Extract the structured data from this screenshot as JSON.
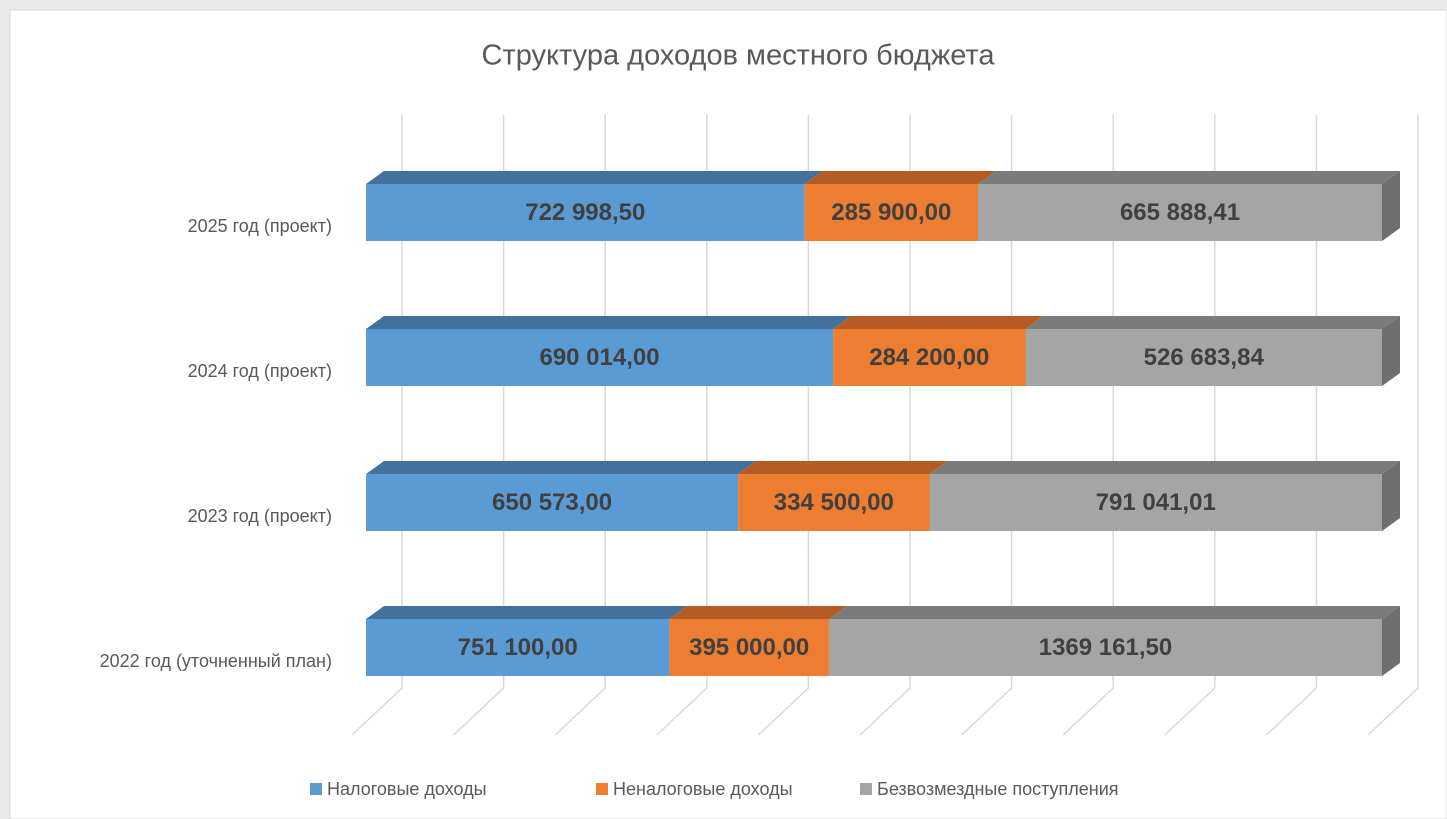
{
  "chart_data": {
    "type": "bar",
    "orientation": "horizontal",
    "stacking": "percent",
    "title": "Структура доходов местного бюджета",
    "categories": [
      "2022 год (уточненный план)",
      "2023 год (проект)",
      "2024 год (проект)",
      "2025 год (проект)"
    ],
    "series": [
      {
        "name": "Налоговые доходы",
        "color": "#5b9bd5",
        "top_color": "#41719c",
        "values": [
          751100.0,
          650573.0,
          690014.0,
          722998.5
        ],
        "value_labels": [
          "751 100,00",
          "650 573,00",
          "690 014,00",
          "722 998,50"
        ]
      },
      {
        "name": "Неналоговые доходы",
        "color": "#ed7d31",
        "top_color": "#b55c22",
        "values": [
          395000.0,
          334500.0,
          284200.0,
          285900.0
        ],
        "value_labels": [
          "395 000,00",
          "334 500,00",
          "284 200,00",
          "285 900,00"
        ]
      },
      {
        "name": "Безвозмездные поступления",
        "color": "#a5a5a5",
        "top_color": "#7b7b7b",
        "values": [
          1369161.5,
          791041.01,
          526683.84,
          665888.41
        ],
        "value_labels": [
          "1369 161,50",
          "791 041,01",
          "526 683,84",
          "665 888,41"
        ]
      }
    ],
    "xlim": [
      0,
      100
    ],
    "xticks": [
      0,
      10,
      20,
      30,
      40,
      50,
      60,
      70,
      80,
      90,
      100
    ],
    "grid": true,
    "legend": "bottom"
  }
}
